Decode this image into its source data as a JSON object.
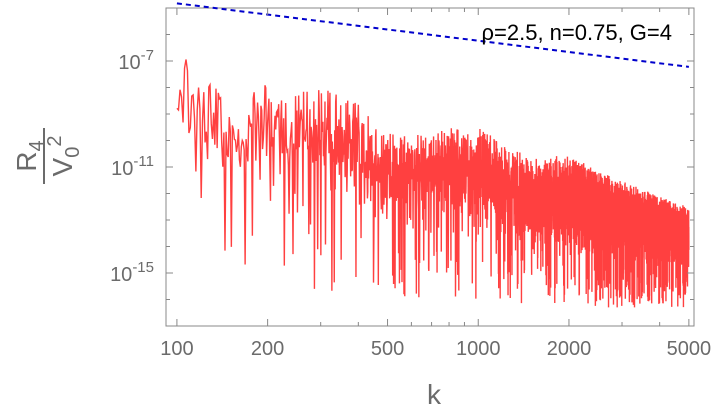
{
  "chart_data": {
    "type": "line",
    "title": "",
    "annotation": "ρ=2.5, n=0.75, G=4",
    "xlabel": "k",
    "ylabel": {
      "numerator": {
        "base": "R",
        "sub": "4"
      },
      "denominator": {
        "base": "V",
        "sub": "0",
        "sup": "2"
      }
    },
    "x_scale": "log",
    "y_scale": "log",
    "xlim": [
      92,
      5200
    ],
    "ylim": [
      1e-17,
      1e-05
    ],
    "x_ticks": [
      {
        "value": 100,
        "label": "100"
      },
      {
        "value": 200,
        "label": "200"
      },
      {
        "value": 500,
        "label": "500"
      },
      {
        "value": 1000,
        "label": "1000"
      },
      {
        "value": 2000,
        "label": "2000"
      },
      {
        "value": 5000,
        "label": "5000"
      }
    ],
    "y_ticks": [
      {
        "value": 1e-07,
        "label": "10",
        "exp": "-7"
      },
      {
        "value": 1e-11,
        "label": "10",
        "exp": "-11"
      },
      {
        "value": 1e-15,
        "label": "10",
        "exp": "-15"
      }
    ],
    "grid": false,
    "series": [
      {
        "style": "dashed",
        "color": "#0000cc",
        "x": [
          100,
          5000
        ],
        "y": [
          1.5e-05,
          6e-08
        ]
      },
      {
        "style": "solid-oscillating",
        "color": "#ff0000",
        "x_range": [
          100,
          5000
        ],
        "envelope_x": [
          100,
          105,
          115,
          150,
          200,
          250,
          300,
          400,
          500,
          700,
          1000,
          1500,
          2000,
          3000,
          5000
        ],
        "envelope_upper": [
          1e-08,
          5e-07,
          3e-08,
          2e-08,
          3e-08,
          2e-08,
          2e-08,
          3e-09,
          2e-10,
          3e-10,
          3e-10,
          2e-11,
          3e-11,
          3e-12,
          3e-13
        ],
        "envelope_lower": [
          1e-11,
          1e-11,
          1e-15,
          3e-16,
          5e-16,
          1e-16,
          1e-16,
          1e-16,
          1e-16,
          1e-16,
          1e-16,
          5e-17,
          5e-17,
          5e-17,
          5e-17
        ]
      }
    ]
  }
}
